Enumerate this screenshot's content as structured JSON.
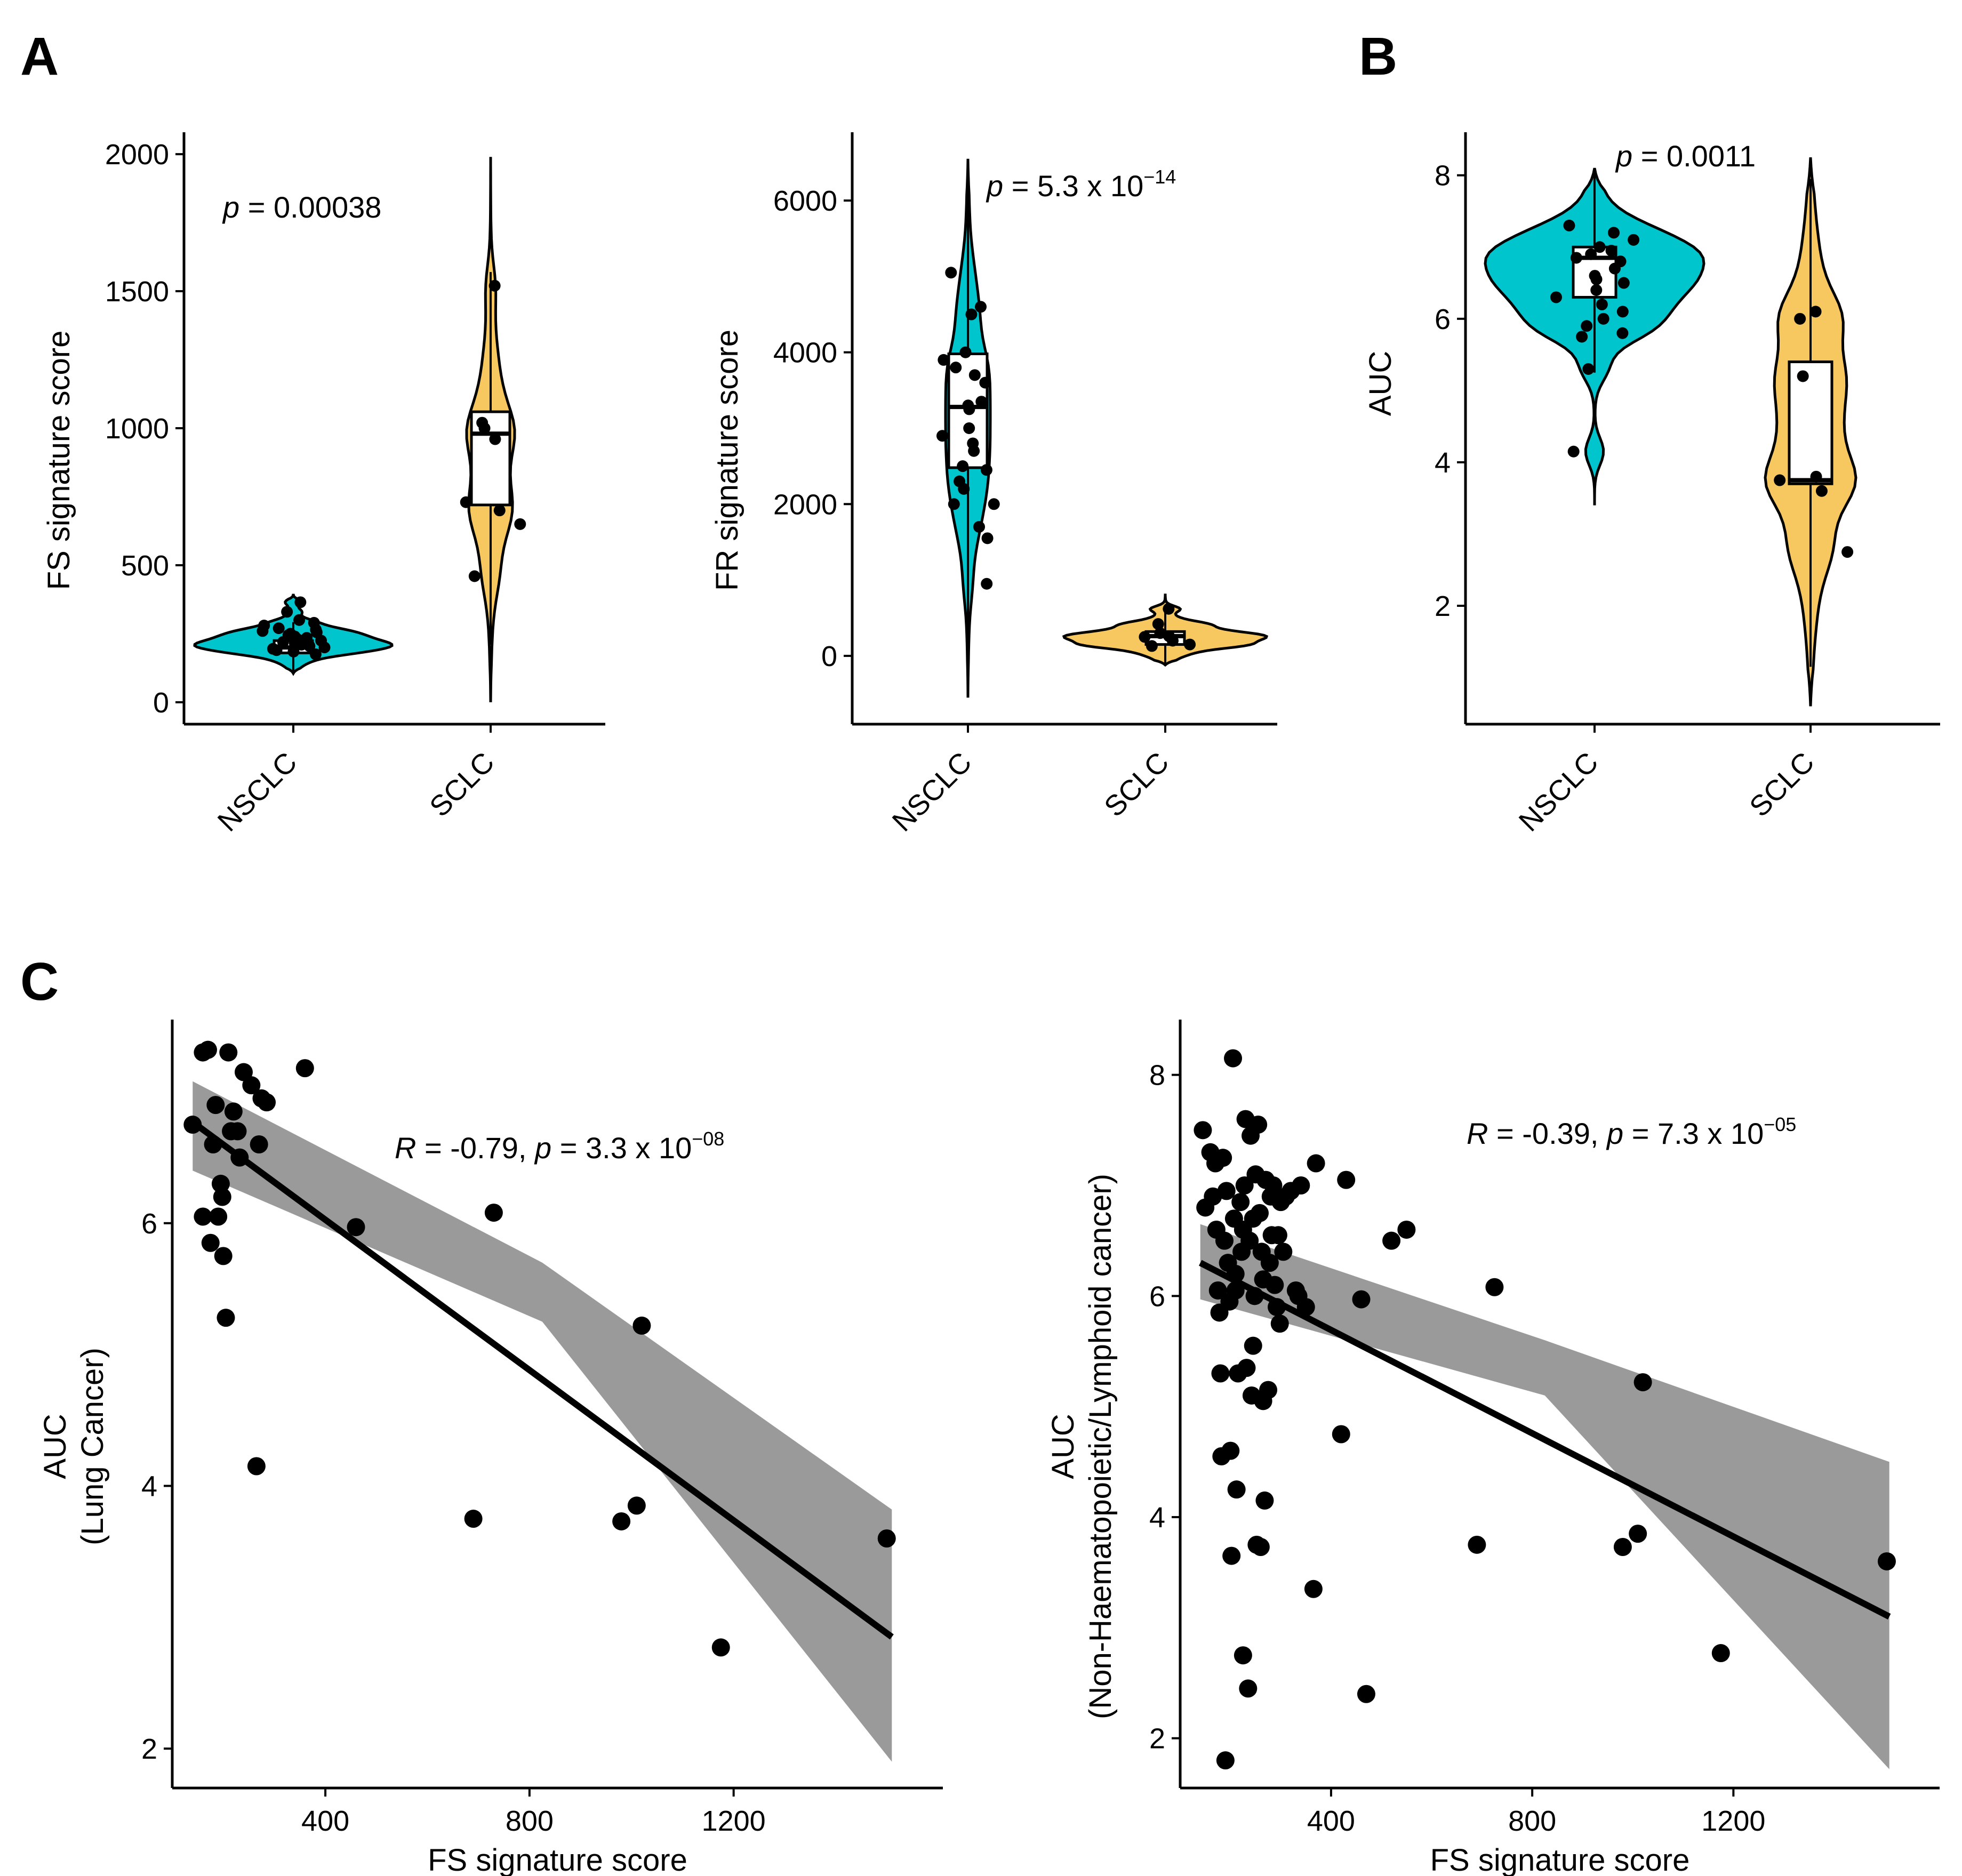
{
  "panels": {
    "a": "A",
    "b": "B",
    "c": "C"
  },
  "colors": {
    "nsclc": "#00C5CD",
    "sclc": "#F8C860",
    "ci_band": "#9A9A9A",
    "point": "#000000"
  },
  "chart_data": [
    {
      "id": "A1",
      "type": "violin",
      "panel": "A",
      "categories": [
        "NSCLC",
        "SCLC"
      ],
      "ylabel": "FS signature score",
      "xlabel": "",
      "ylim": [
        -80,
        2080
      ],
      "yticks": [
        0,
        500,
        1000,
        1500,
        2000
      ],
      "annotation": {
        "prefix": "p",
        "text": " = 0.00038"
      },
      "groups": [
        {
          "name": "NSCLC",
          "color": "#00C5CD",
          "min": 105,
          "max": 395,
          "median": 200,
          "q1": 180,
          "q3": 225,
          "points": [
            195,
            210,
            230,
            250,
            270,
            290,
            205,
            185,
            215,
            240,
            260,
            300,
            365,
            330,
            175,
            220,
            245,
            190,
            200,
            235,
            255,
            265,
            280,
            210,
            225
          ]
        },
        {
          "name": "SCLC",
          "color": "#F8C860",
          "min": 0,
          "max": 1990,
          "median": 980,
          "q1": 720,
          "q3": 1060,
          "points": [
            1520,
            1020,
            1000,
            960,
            730,
            700,
            650,
            460
          ]
        }
      ]
    },
    {
      "id": "A2",
      "type": "violin",
      "panel": "A",
      "categories": [
        "NSCLC",
        "SCLC"
      ],
      "ylabel": "FR signature score",
      "xlabel": "",
      "ylim": [
        -900,
        6900
      ],
      "yticks": [
        0,
        2000,
        4000,
        6000
      ],
      "annotation": {
        "prefix": "p",
        "text": " = 5.3 x 10",
        "sup": "−14"
      },
      "groups": [
        {
          "name": "NSCLC",
          "color": "#00C5CD",
          "min": -550,
          "max": 6550,
          "median": 3280,
          "q1": 2480,
          "q3": 3980,
          "points": [
            5050,
            4600,
            4500,
            4000,
            3800,
            3600,
            3350,
            3300,
            3250,
            3000,
            2900,
            2800,
            2700,
            2500,
            2450,
            2300,
            2200,
            2000,
            2000,
            1700,
            1550,
            950,
            3900,
            3700
          ]
        },
        {
          "name": "SCLC",
          "color": "#F8C860",
          "min": -120,
          "max": 820,
          "median": 260,
          "q1": 150,
          "q3": 320,
          "points": [
            620,
            420,
            300,
            260,
            250,
            200,
            150,
            130
          ]
        }
      ]
    },
    {
      "id": "B",
      "type": "violin",
      "panel": "B",
      "categories": [
        "NSCLC",
        "SCLC"
      ],
      "ylabel": "AUC",
      "xlabel": "",
      "ylim": [
        0.35,
        8.6
      ],
      "yticks": [
        2,
        4,
        6,
        8
      ],
      "annotation": {
        "prefix": "p",
        "text": " = 0.0011"
      },
      "groups": [
        {
          "name": "NSCLC",
          "color": "#00C5CD",
          "min": 3.4,
          "max": 8.1,
          "median": 6.85,
          "q1": 6.3,
          "q3": 7.0,
          "points": [
            7.3,
            7.2,
            7.0,
            6.9,
            6.85,
            6.8,
            6.7,
            6.6,
            6.55,
            6.4,
            6.3,
            6.2,
            6.0,
            5.9,
            5.8,
            5.75,
            5.3,
            4.15,
            7.1,
            6.95,
            6.5,
            6.1
          ]
        },
        {
          "name": "SCLC",
          "color": "#F8C860",
          "min": 0.6,
          "max": 8.25,
          "median": 3.75,
          "q1": 3.7,
          "q3": 5.4,
          "points": [
            6.1,
            6.0,
            5.2,
            3.8,
            3.75,
            3.6,
            2.75
          ]
        }
      ]
    },
    {
      "id": "C1",
      "type": "scatter",
      "panel": "C",
      "xlabel": "FS signature score",
      "ylabel": "AUC",
      "ylabel2": "(Lung Cancer)",
      "xlim": [
        100,
        1610
      ],
      "xticks": [
        400,
        800,
        1200
      ],
      "ylim": [
        1.7,
        7.55
      ],
      "yticks": [
        2,
        4,
        6
      ],
      "fit": {
        "x0": 140,
        "y0": 6.77,
        "x1": 1510,
        "y1": 2.85,
        "ci0": [
          6.4,
          7.08
        ],
        "cim": [
          5.25,
          5.7
        ],
        "ci1": [
          1.9,
          3.82
        ]
      },
      "annotation": {
        "r_prefix": "R",
        "r_text": " = -0.79, ",
        "p_prefix": "p",
        "p_text": " = 3.3 x 10",
        "sup": "−08"
      },
      "points": [
        [
          140,
          6.75
        ],
        [
          160,
          7.3
        ],
        [
          170,
          7.32
        ],
        [
          160,
          6.05
        ],
        [
          175,
          5.85
        ],
        [
          180,
          6.6
        ],
        [
          185,
          6.9
        ],
        [
          190,
          6.05
        ],
        [
          195,
          6.3
        ],
        [
          198,
          6.2
        ],
        [
          200,
          5.75
        ],
        [
          205,
          5.28
        ],
        [
          210,
          7.3
        ],
        [
          215,
          6.7
        ],
        [
          220,
          6.85
        ],
        [
          228,
          6.7
        ],
        [
          232,
          6.5
        ],
        [
          240,
          7.15
        ],
        [
          255,
          7.05
        ],
        [
          265,
          4.15
        ],
        [
          270,
          6.6
        ],
        [
          275,
          6.95
        ],
        [
          285,
          6.92
        ],
        [
          360,
          7.18
        ],
        [
          460,
          5.97
        ],
        [
          690,
          3.75
        ],
        [
          730,
          6.08
        ],
        [
          980,
          3.73
        ],
        [
          1010,
          3.85
        ],
        [
          1020,
          5.22
        ],
        [
          1175,
          2.77
        ],
        [
          1500,
          3.6
        ]
      ]
    },
    {
      "id": "C2",
      "type": "scatter",
      "panel": "C",
      "xlabel": "FS signature score",
      "ylabel": "AUC",
      "ylabel2": "(Non-Haematopoietic/Lymphoid cancer)",
      "xlim": [
        100,
        1610
      ],
      "xticks": [
        400,
        800,
        1200
      ],
      "ylim": [
        1.55,
        8.5
      ],
      "yticks": [
        2,
        4,
        6,
        8
      ],
      "fit": {
        "x0": 140,
        "y0": 6.3,
        "x1": 1510,
        "y1": 3.1,
        "ci0": [
          5.97,
          6.65
        ],
        "cim": [
          5.1,
          5.6
        ],
        "ci1": [
          1.72,
          4.5
        ]
      },
      "annotation": {
        "r_prefix": "R",
        "r_text": " = -0.39, ",
        "p_prefix": "p",
        "p_text": " = 7.3 x 10",
        "sup": "−05"
      },
      "points": [
        [
          145,
          7.5
        ],
        [
          150,
          6.8
        ],
        [
          160,
          7.3
        ],
        [
          165,
          6.9
        ],
        [
          170,
          7.2
        ],
        [
          172,
          6.6
        ],
        [
          175,
          6.05
        ],
        [
          178,
          5.85
        ],
        [
          180,
          5.3
        ],
        [
          182,
          4.55
        ],
        [
          185,
          7.25
        ],
        [
          188,
          6.5
        ],
        [
          190,
          1.8
        ],
        [
          192,
          6.95
        ],
        [
          195,
          6.3
        ],
        [
          198,
          5.95
        ],
        [
          200,
          4.6
        ],
        [
          202,
          3.65
        ],
        [
          205,
          8.15
        ],
        [
          207,
          6.7
        ],
        [
          210,
          6.2
        ],
        [
          212,
          4.25
        ],
        [
          215,
          5.3
        ],
        [
          220,
          6.85
        ],
        [
          222,
          6.4
        ],
        [
          225,
          2.75
        ],
        [
          228,
          7.0
        ],
        [
          230,
          7.6
        ],
        [
          232,
          5.35
        ],
        [
          235,
          2.45
        ],
        [
          238,
          6.5
        ],
        [
          240,
          7.45
        ],
        [
          242,
          5.1
        ],
        [
          245,
          5.55
        ],
        [
          248,
          6.0
        ],
        [
          250,
          7.1
        ],
        [
          252,
          3.75
        ],
        [
          255,
          7.55
        ],
        [
          258,
          6.75
        ],
        [
          260,
          3.73
        ],
        [
          262,
          6.4
        ],
        [
          265,
          5.05
        ],
        [
          268,
          4.15
        ],
        [
          270,
          7.05
        ],
        [
          275,
          5.15
        ],
        [
          278,
          6.3
        ],
        [
          280,
          6.9
        ],
        [
          282,
          6.55
        ],
        [
          285,
          7.0
        ],
        [
          288,
          6.1
        ],
        [
          292,
          5.9
        ],
        [
          295,
          6.55
        ],
        [
          298,
          5.75
        ],
        [
          300,
          6.85
        ],
        [
          305,
          6.4
        ],
        [
          310,
          6.9
        ],
        [
          320,
          6.95
        ],
        [
          330,
          6.05
        ],
        [
          335,
          6.0
        ],
        [
          340,
          7.0
        ],
        [
          350,
          5.9
        ],
        [
          365,
          3.35
        ],
        [
          370,
          7.2
        ],
        [
          420,
          4.75
        ],
        [
          430,
          7.05
        ],
        [
          460,
          5.97
        ],
        [
          470,
          2.4
        ],
        [
          520,
          6.5
        ],
        [
          550,
          6.6
        ],
        [
          690,
          3.75
        ],
        [
          725,
          6.08
        ],
        [
          980,
          3.73
        ],
        [
          1010,
          3.85
        ],
        [
          1020,
          5.22
        ],
        [
          1175,
          2.77
        ],
        [
          1505,
          3.6
        ],
        [
          210,
          6.05
        ],
        [
          245,
          6.7
        ],
        [
          265,
          6.15
        ],
        [
          225,
          6.6
        ]
      ]
    }
  ]
}
